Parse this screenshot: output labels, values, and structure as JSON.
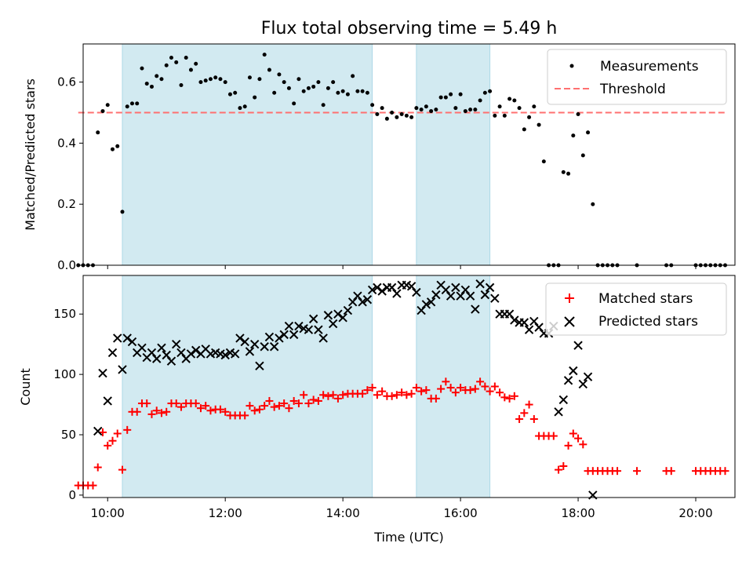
{
  "chart_data": [
    {
      "type": "scatter",
      "title": "Flux total observing time = 5.49 h",
      "xlabel": "",
      "ylabel": "Matched/Predicted stars",
      "xlim": [
        "09:35",
        "20:40"
      ],
      "ylim": [
        0,
        0.725
      ],
      "xticks": [
        "10:00",
        "12:00",
        "14:00",
        "16:00",
        "18:00",
        "20:00"
      ],
      "xtick_labels_shown": false,
      "yticks": [
        0.0,
        0.2,
        0.4,
        0.6
      ],
      "ytick_labels": [
        "0.0",
        "0.2",
        "0.4",
        "0.6"
      ],
      "shaded_intervals": [
        [
          "10:15",
          "14:30"
        ],
        [
          "15:15",
          "16:30"
        ]
      ],
      "shade_color": "#add8e6",
      "legend_position": "top-right",
      "threshold": {
        "name": "Threshold",
        "y": 0.5,
        "x_range": [
          "09:30",
          "20:30"
        ],
        "color": "#ff7070",
        "style": "dashed"
      },
      "series": [
        {
          "name": "Measurements",
          "color": "#000000",
          "marker": "dot",
          "x": [
            "09:30",
            "09:35",
            "09:40",
            "09:45",
            "09:50",
            "09:55",
            "10:00",
            "10:05",
            "10:10",
            "10:15",
            "10:20",
            "10:25",
            "10:30",
            "10:35",
            "10:40",
            "10:45",
            "10:50",
            "10:55",
            "11:00",
            "11:05",
            "11:10",
            "11:15",
            "11:20",
            "11:25",
            "11:30",
            "11:35",
            "11:40",
            "11:45",
            "11:50",
            "11:55",
            "12:00",
            "12:05",
            "12:10",
            "12:15",
            "12:20",
            "12:25",
            "12:30",
            "12:35",
            "12:40",
            "12:45",
            "12:50",
            "12:55",
            "13:00",
            "13:05",
            "13:10",
            "13:15",
            "13:20",
            "13:25",
            "13:30",
            "13:35",
            "13:40",
            "13:45",
            "13:50",
            "13:55",
            "14:00",
            "14:05",
            "14:10",
            "14:15",
            "14:20",
            "14:25",
            "14:30",
            "14:35",
            "14:40",
            "14:45",
            "14:50",
            "14:55",
            "15:00",
            "15:05",
            "15:10",
            "15:15",
            "15:20",
            "15:25",
            "15:30",
            "15:35",
            "15:40",
            "15:45",
            "15:50",
            "15:55",
            "16:00",
            "16:05",
            "16:10",
            "16:15",
            "16:20",
            "16:25",
            "16:30",
            "16:35",
            "16:40",
            "16:45",
            "16:50",
            "16:55",
            "17:00",
            "17:05",
            "17:10",
            "17:15",
            "17:20",
            "17:25",
            "17:30",
            "17:35",
            "17:40",
            "17:45",
            "17:50",
            "17:55",
            "18:00",
            "18:05",
            "18:10",
            "18:15",
            "18:20",
            "18:25",
            "18:30",
            "18:35",
            "18:40",
            "19:00",
            "19:30",
            "19:35",
            "20:00",
            "20:05",
            "20:10",
            "20:15",
            "20:20",
            "20:25",
            "20:30"
          ],
          "y": [
            0.0,
            0.0,
            0.0,
            0.0,
            0.435,
            0.505,
            0.525,
            0.38,
            0.39,
            0.175,
            0.52,
            0.53,
            0.53,
            0.645,
            0.595,
            0.585,
            0.62,
            0.61,
            0.655,
            0.68,
            0.665,
            0.59,
            0.68,
            0.64,
            0.66,
            0.6,
            0.605,
            0.61,
            0.615,
            0.61,
            0.6,
            0.56,
            0.565,
            0.515,
            0.52,
            0.615,
            0.55,
            0.61,
            0.69,
            0.64,
            0.565,
            0.625,
            0.6,
            0.58,
            0.53,
            0.61,
            0.57,
            0.58,
            0.585,
            0.6,
            0.525,
            0.58,
            0.6,
            0.565,
            0.57,
            0.56,
            0.62,
            0.57,
            0.57,
            0.565,
            0.525,
            0.495,
            0.515,
            0.48,
            0.5,
            0.485,
            0.495,
            0.49,
            0.485,
            0.515,
            0.51,
            0.52,
            0.505,
            0.51,
            0.55,
            0.55,
            0.56,
            0.515,
            0.56,
            0.505,
            0.51,
            0.51,
            0.54,
            0.565,
            0.57,
            0.49,
            0.52,
            0.49,
            0.545,
            0.54,
            0.515,
            0.445,
            0.485,
            0.52,
            0.46,
            0.34,
            0.0,
            0.0,
            0.0,
            0.305,
            0.3,
            0.425,
            0.495,
            0.36,
            0.435,
            0.2,
            0.0,
            0.0,
            0.0,
            0.0,
            0.0,
            0.0,
            0.0,
            0.0,
            0.0,
            0.0,
            0.0,
            0.0,
            0.0,
            0.0,
            0.0
          ]
        }
      ]
    },
    {
      "type": "scatter",
      "title": "",
      "xlabel": "Time (UTC)",
      "ylabel": "Count",
      "xlim": [
        "09:35",
        "20:40"
      ],
      "ylim": [
        -2,
        182
      ],
      "xticks": [
        "10:00",
        "12:00",
        "14:00",
        "16:00",
        "18:00",
        "20:00"
      ],
      "xtick_labels": [
        "10:00",
        "12:00",
        "14:00",
        "16:00",
        "18:00",
        "20:00"
      ],
      "yticks": [
        0,
        50,
        100,
        150
      ],
      "ytick_labels": [
        "0",
        "50",
        "100",
        "150"
      ],
      "shaded_intervals": [
        [
          "10:15",
          "14:30"
        ],
        [
          "15:15",
          "16:30"
        ]
      ],
      "shade_color": "#add8e6",
      "legend_position": "top-right",
      "series": [
        {
          "name": "Matched stars",
          "color": "#ff0000",
          "marker": "plus",
          "x": [
            "09:30",
            "09:35",
            "09:40",
            "09:45",
            "09:50",
            "09:55",
            "10:00",
            "10:05",
            "10:10",
            "10:15",
            "10:20",
            "10:25",
            "10:30",
            "10:35",
            "10:40",
            "10:45",
            "10:50",
            "10:55",
            "11:00",
            "11:05",
            "11:10",
            "11:15",
            "11:20",
            "11:25",
            "11:30",
            "11:35",
            "11:40",
            "11:45",
            "11:50",
            "11:55",
            "12:00",
            "12:05",
            "12:10",
            "12:15",
            "12:20",
            "12:25",
            "12:30",
            "12:35",
            "12:40",
            "12:45",
            "12:50",
            "12:55",
            "13:00",
            "13:05",
            "13:10",
            "13:15",
            "13:20",
            "13:25",
            "13:30",
            "13:35",
            "13:40",
            "13:45",
            "13:50",
            "13:55",
            "14:00",
            "14:05",
            "14:10",
            "14:15",
            "14:20",
            "14:25",
            "14:30",
            "14:35",
            "14:40",
            "14:45",
            "14:50",
            "14:55",
            "15:00",
            "15:05",
            "15:10",
            "15:15",
            "15:20",
            "15:25",
            "15:30",
            "15:35",
            "15:40",
            "15:45",
            "15:50",
            "15:55",
            "16:00",
            "16:05",
            "16:10",
            "16:15",
            "16:20",
            "16:25",
            "16:30",
            "16:35",
            "16:40",
            "16:45",
            "16:50",
            "16:55",
            "17:00",
            "17:05",
            "17:10",
            "17:15",
            "17:20",
            "17:25",
            "17:30",
            "17:35",
            "17:40",
            "17:45",
            "17:50",
            "17:55",
            "18:00",
            "18:05",
            "18:10",
            "18:15",
            "18:20",
            "18:25",
            "18:30",
            "18:35",
            "18:40",
            "19:00",
            "19:30",
            "19:35",
            "20:00",
            "20:05",
            "20:10",
            "20:15",
            "20:20",
            "20:25",
            "20:30"
          ],
          "y": [
            8,
            8,
            8,
            8,
            23,
            52,
            41,
            45,
            51,
            21,
            54,
            69,
            69,
            76,
            76,
            67,
            70,
            68,
            69,
            76,
            76,
            73,
            76,
            76,
            76,
            72,
            74,
            70,
            71,
            71,
            69,
            66,
            66,
            66,
            66,
            74,
            70,
            71,
            74,
            78,
            73,
            74,
            76,
            72,
            78,
            76,
            83,
            76,
            79,
            78,
            83,
            82,
            83,
            80,
            83,
            84,
            84,
            84,
            84,
            87,
            89,
            83,
            86,
            82,
            82,
            83,
            85,
            83,
            84,
            89,
            86,
            87,
            80,
            80,
            88,
            94,
            89,
            85,
            89,
            87,
            87,
            88,
            94,
            90,
            86,
            90,
            85,
            81,
            80,
            82,
            63,
            68,
            75,
            63,
            49,
            49,
            49,
            49,
            21,
            24,
            41,
            51,
            47,
            42,
            20,
            20,
            20,
            20,
            20,
            20,
            20,
            20,
            20,
            20,
            20,
            20,
            20,
            20,
            20,
            20,
            20
          ]
        },
        {
          "name": "Predicted stars",
          "color": "#000000",
          "marker": "x",
          "x": [
            "09:50",
            "09:55",
            "10:00",
            "10:05",
            "10:10",
            "10:15",
            "10:20",
            "10:25",
            "10:30",
            "10:35",
            "10:40",
            "10:45",
            "10:50",
            "10:55",
            "11:00",
            "11:05",
            "11:10",
            "11:15",
            "11:20",
            "11:25",
            "11:30",
            "11:35",
            "11:40",
            "11:45",
            "11:50",
            "11:55",
            "12:00",
            "12:05",
            "12:10",
            "12:15",
            "12:20",
            "12:25",
            "12:30",
            "12:35",
            "12:40",
            "12:45",
            "12:50",
            "12:55",
            "13:00",
            "13:05",
            "13:10",
            "13:15",
            "13:20",
            "13:25",
            "13:30",
            "13:35",
            "13:40",
            "13:45",
            "13:50",
            "13:55",
            "14:00",
            "14:05",
            "14:10",
            "14:15",
            "14:20",
            "14:25",
            "14:30",
            "14:35",
            "14:40",
            "14:45",
            "14:50",
            "14:55",
            "15:00",
            "15:05",
            "15:10",
            "15:15",
            "15:20",
            "15:25",
            "15:30",
            "15:35",
            "15:40",
            "15:45",
            "15:50",
            "15:55",
            "16:00",
            "16:05",
            "16:10",
            "16:15",
            "16:20",
            "16:25",
            "16:30",
            "16:35",
            "16:40",
            "16:45",
            "16:50",
            "16:55",
            "17:00",
            "17:05",
            "17:10",
            "17:15",
            "17:20",
            "17:25",
            "17:30",
            "17:35",
            "17:40",
            "17:45",
            "17:50",
            "17:55",
            "18:00",
            "18:05",
            "18:10",
            "18:15"
          ],
          "y": [
            53,
            101,
            78,
            118,
            130,
            104,
            130,
            127,
            118,
            122,
            114,
            118,
            113,
            122,
            116,
            111,
            125,
            118,
            113,
            117,
            120,
            117,
            121,
            117,
            118,
            117,
            116,
            118,
            117,
            130,
            127,
            119,
            125,
            107,
            123,
            131,
            123,
            130,
            133,
            140,
            133,
            140,
            138,
            137,
            146,
            137,
            130,
            149,
            142,
            150,
            147,
            153,
            160,
            165,
            160,
            162,
            170,
            172,
            169,
            172,
            172,
            167,
            174,
            174,
            173,
            168,
            153,
            158,
            160,
            166,
            174,
            170,
            165,
            172,
            165,
            170,
            165,
            154,
            175,
            166,
            172,
            163,
            150,
            150,
            150,
            145,
            143,
            143,
            137,
            144,
            139,
            134,
            134,
            140,
            69,
            79,
            95,
            103,
            124,
            92,
            98,
            0
          ]
        }
      ]
    }
  ]
}
